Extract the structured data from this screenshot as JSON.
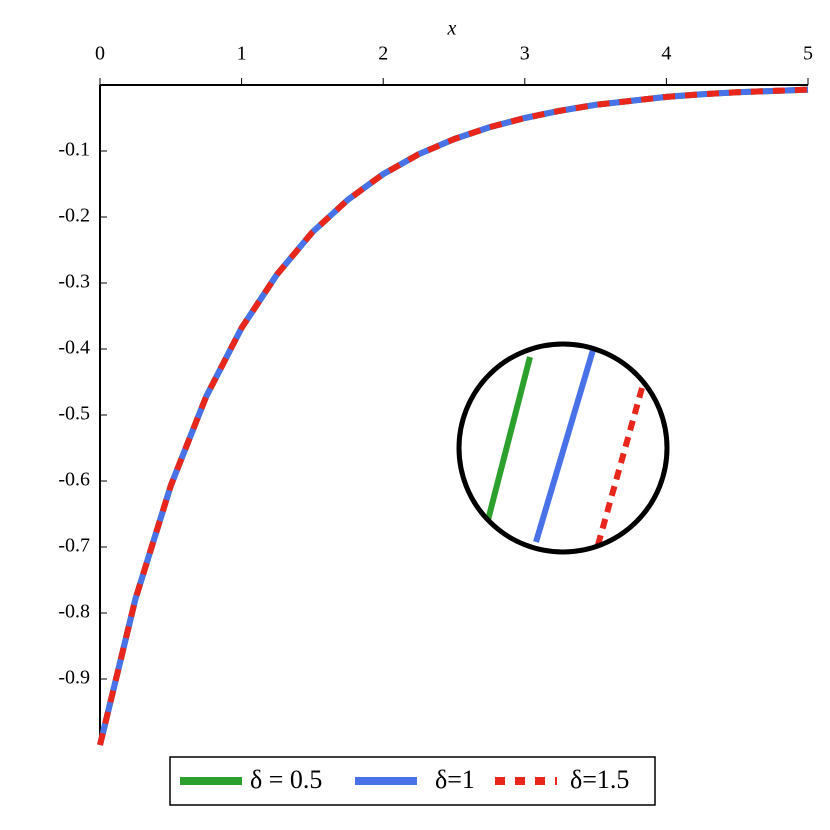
{
  "chart_data": {
    "type": "line",
    "x_label": "x",
    "x": [
      0,
      0.25,
      0.5,
      0.75,
      1,
      1.25,
      1.5,
      1.75,
      2,
      2.25,
      2.5,
      2.75,
      3,
      3.25,
      3.5,
      3.75,
      4,
      4.25,
      4.5,
      4.75,
      5
    ],
    "series": [
      {
        "name": "δ = 0.5",
        "color": "#2ca02c",
        "values": [
          -1,
          -0.779,
          -0.607,
          -0.472,
          -0.368,
          -0.287,
          -0.223,
          -0.174,
          -0.135,
          -0.105,
          -0.082,
          -0.064,
          -0.05,
          -0.039,
          -0.03,
          -0.024,
          -0.018,
          -0.014,
          -0.011,
          -0.009,
          -0.007
        ]
      },
      {
        "name": "δ=1",
        "color": "#4a72e8",
        "values": [
          -1,
          -0.779,
          -0.607,
          -0.472,
          -0.368,
          -0.287,
          -0.223,
          -0.174,
          -0.135,
          -0.105,
          -0.082,
          -0.064,
          -0.05,
          -0.039,
          -0.03,
          -0.024,
          -0.018,
          -0.014,
          -0.011,
          -0.009,
          -0.007
        ]
      },
      {
        "name": "δ=1.5",
        "color": "#e8261c",
        "dashed": true,
        "values": [
          -1,
          -0.779,
          -0.607,
          -0.472,
          -0.368,
          -0.287,
          -0.223,
          -0.174,
          -0.135,
          -0.105,
          -0.082,
          -0.064,
          -0.05,
          -0.039,
          -0.03,
          -0.024,
          -0.018,
          -0.014,
          -0.011,
          -0.009,
          -0.007
        ]
      }
    ],
    "xlim": [
      0,
      5
    ],
    "xticks": [
      0,
      1,
      2,
      3,
      4,
      5
    ],
    "ylim": [
      -1,
      0
    ],
    "yticks": [
      -0.1,
      -0.2,
      -0.3,
      -0.4,
      -0.5,
      -0.6,
      -0.7,
      -0.8,
      -0.9
    ],
    "legend": "bottom"
  }
}
